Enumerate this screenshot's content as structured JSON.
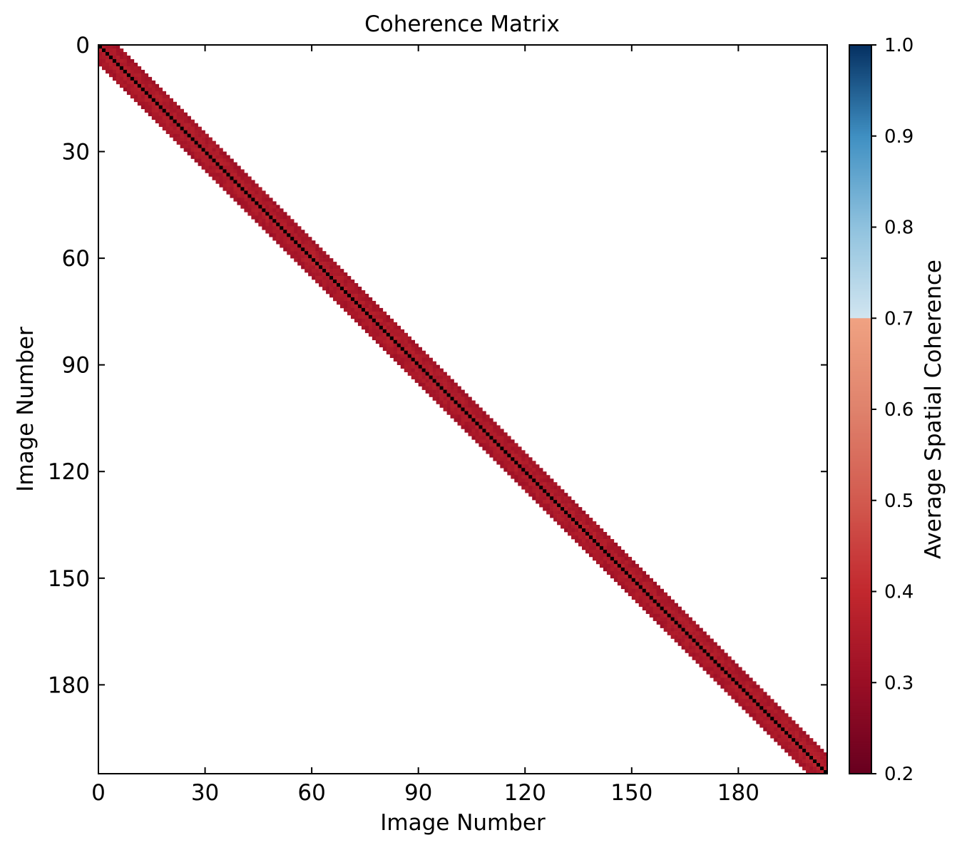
{
  "chart_data": {
    "type": "heatmap",
    "title": "Coherence Matrix",
    "xlabel": "Image Number",
    "ylabel": "Image Number",
    "n_images": 205,
    "band_half_width": 5,
    "diagonal_value": 1.0,
    "off_diagonal_value_range": [
      0.28,
      0.4
    ],
    "outside_band": "no data (blank)",
    "xlim": [
      0,
      205
    ],
    "ylim": [
      205,
      0
    ],
    "x_ticks": [
      0,
      30,
      60,
      90,
      120,
      150,
      180
    ],
    "y_ticks": [
      0,
      30,
      60,
      90,
      120,
      150,
      180
    ],
    "x_tick_labels": [
      "0",
      "30",
      "60",
      "90",
      "120",
      "150",
      "180"
    ],
    "y_tick_labels": [
      "0",
      "30",
      "60",
      "90",
      "120",
      "150",
      "180"
    ],
    "colorbar": {
      "label": "Average Spatial Coherence",
      "range": [
        0.2,
        1.0
      ],
      "ticks": [
        0.2,
        0.3,
        0.4,
        0.5,
        0.6,
        0.7,
        0.8,
        0.9,
        1.0
      ],
      "tick_labels": [
        "0.2",
        "0.3",
        "0.4",
        "0.5",
        "0.6",
        "0.7",
        "0.8",
        "0.9",
        "1.0"
      ],
      "colormap": "RdBu",
      "stops": [
        {
          "v": 0.2,
          "color": "#67001f"
        },
        {
          "v": 0.3,
          "color": "#9a0e25"
        },
        {
          "v": 0.4,
          "color": "#c2282e"
        },
        {
          "v": 0.5,
          "color": "#d25a4f"
        },
        {
          "v": 0.6,
          "color": "#df826c"
        },
        {
          "v": 0.6999,
          "color": "#f0a282"
        },
        {
          "v": 0.7001,
          "color": "#d1e5f0"
        },
        {
          "v": 0.8,
          "color": "#8fc2de"
        },
        {
          "v": 0.9,
          "color": "#3f8fc2"
        },
        {
          "v": 1.0,
          "color": "#053061"
        }
      ],
      "diagonal_color": "#000000"
    }
  }
}
